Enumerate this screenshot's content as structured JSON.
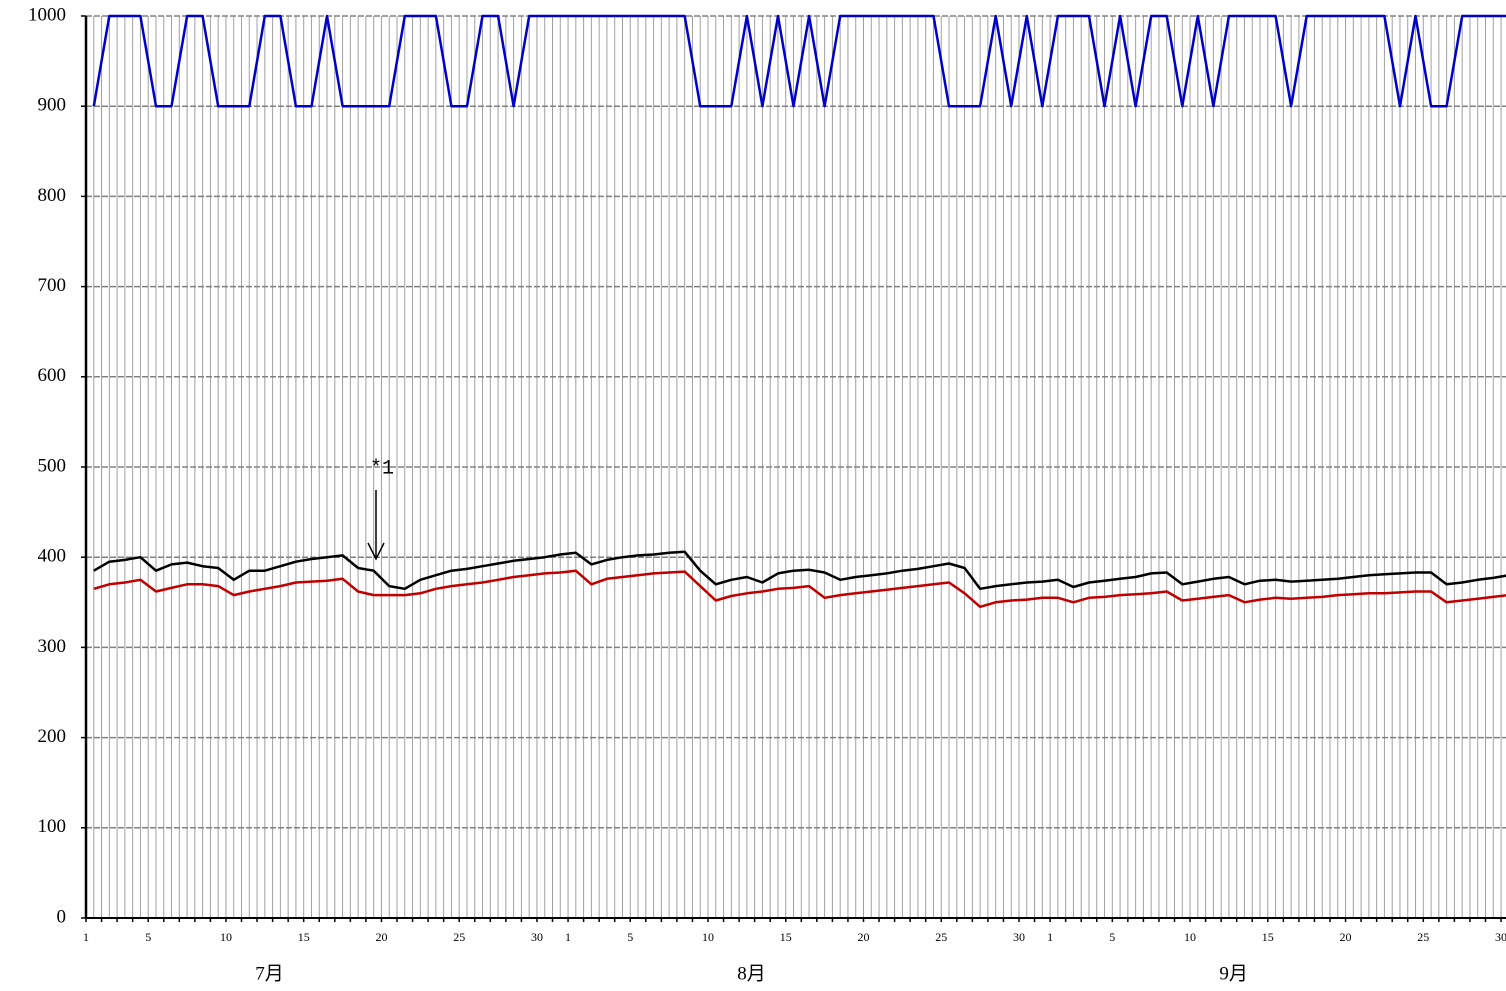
{
  "chart_data": {
    "type": "line",
    "categories": [
      1,
      null,
      null,
      null,
      5,
      null,
      null,
      null,
      null,
      10,
      null,
      null,
      null,
      null,
      15,
      null,
      null,
      null,
      null,
      20,
      null,
      null,
      null,
      null,
      25,
      null,
      null,
      null,
      null,
      30,
      null,
      1,
      null,
      null,
      null,
      5,
      null,
      null,
      null,
      null,
      10,
      null,
      null,
      null,
      null,
      15,
      null,
      null,
      null,
      null,
      20,
      null,
      null,
      null,
      null,
      25,
      null,
      null,
      null,
      null,
      30,
      null,
      1,
      null,
      null,
      null,
      5,
      null,
      null,
      null,
      null,
      10,
      null,
      null,
      null,
      null,
      15,
      null,
      null,
      null,
      null,
      20,
      null,
      null,
      null,
      null,
      25,
      null,
      null,
      null,
      null,
      30
    ],
    "month_labels": [
      "7月",
      "8月",
      "9月"
    ],
    "annotation": "*1",
    "series": [
      {
        "color": "#000000",
        "values": [
          385,
          395,
          397,
          400,
          385,
          392,
          394,
          390,
          388,
          375,
          385,
          385,
          390,
          395,
          398,
          400,
          402,
          388,
          385,
          368,
          365,
          375,
          380,
          385,
          387,
          390,
          393,
          396,
          398,
          400,
          403,
          405,
          392,
          397,
          400,
          402,
          403,
          405,
          406,
          385,
          370,
          375,
          378,
          372,
          382,
          385,
          386,
          383,
          375,
          378,
          380,
          382,
          385,
          387,
          390,
          393,
          388,
          365,
          368,
          370,
          372,
          373,
          375,
          367,
          372,
          374,
          376,
          378,
          382,
          383,
          370,
          373,
          376,
          378,
          370,
          374,
          375,
          373,
          374,
          375,
          376,
          378,
          380,
          381,
          382,
          383,
          383,
          370,
          372,
          375,
          377,
          380
        ]
      },
      {
        "color": "#c00000",
        "values": [
          365,
          370,
          372,
          375,
          362,
          366,
          370,
          370,
          368,
          358,
          362,
          365,
          368,
          372,
          373,
          374,
          376,
          362,
          358,
          358,
          358,
          360,
          365,
          368,
          370,
          372,
          375,
          378,
          380,
          382,
          383,
          385,
          370,
          376,
          378,
          380,
          382,
          383,
          384,
          368,
          352,
          357,
          360,
          362,
          365,
          366,
          368,
          355,
          358,
          360,
          362,
          364,
          366,
          368,
          370,
          372,
          360,
          345,
          350,
          352,
          353,
          355,
          355,
          350,
          355,
          356,
          358,
          359,
          360,
          362,
          352,
          354,
          356,
          358,
          350,
          353,
          355,
          354,
          355,
          356,
          358,
          359,
          360,
          360,
          361,
          362,
          362,
          350,
          352,
          354,
          356,
          358
        ]
      },
      {
        "color": "#0000cc",
        "values": [
          900,
          1000,
          1000,
          1000,
          900,
          900,
          1000,
          1000,
          900,
          900,
          900,
          1000,
          1000,
          900,
          900,
          1000,
          900,
          900,
          900,
          900,
          1000,
          1000,
          1000,
          900,
          900,
          1000,
          1000,
          900,
          1000,
          1000,
          1000,
          1000,
          1000,
          1000,
          1000,
          1000,
          1000,
          1000,
          1000,
          900,
          900,
          900,
          1000,
          900,
          1000,
          900,
          1000,
          900,
          1000,
          1000,
          1000,
          1000,
          1000,
          1000,
          1000,
          900,
          900,
          900,
          1000,
          900,
          1000,
          900,
          1000,
          1000,
          1000,
          900,
          1000,
          900,
          1000,
          1000,
          900,
          1000,
          900,
          1000,
          1000,
          1000,
          1000,
          900,
          1000,
          1000,
          1000,
          1000,
          1000,
          1000,
          900,
          1000,
          900,
          900,
          1000,
          1000,
          1000,
          1000
        ]
      }
    ],
    "ylim": [
      0,
      1000
    ],
    "yticks": [
      0,
      100,
      200,
      300,
      400,
      500,
      600,
      700,
      800,
      900,
      1000
    ],
    "grid": true
  }
}
